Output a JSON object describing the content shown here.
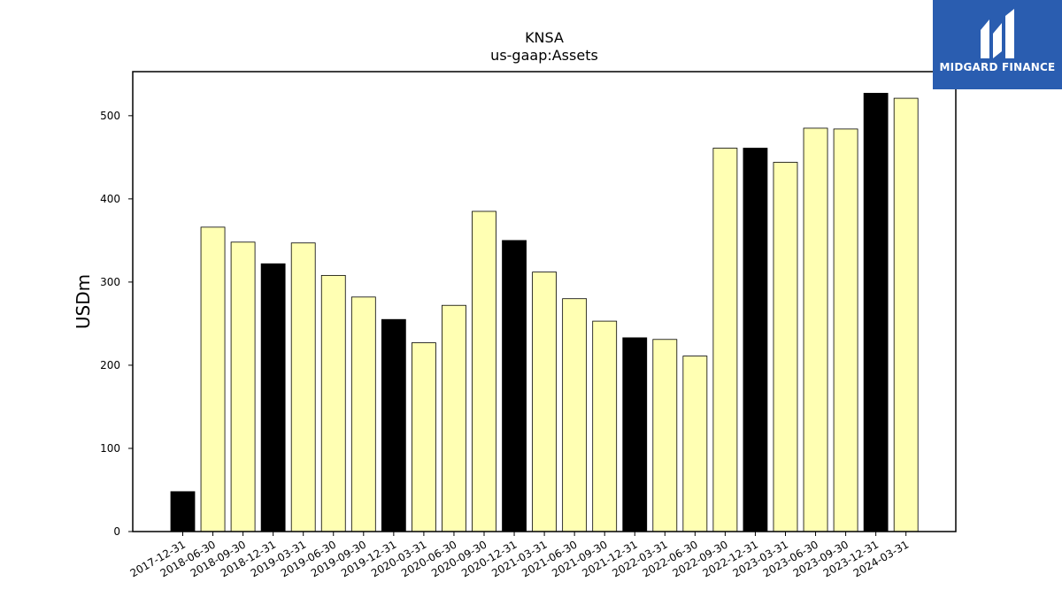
{
  "chart_data": {
    "type": "bar",
    "title": "KNSA",
    "subtitle": "us-gaap:Assets",
    "ylabel": "USDm",
    "xlabel": "",
    "ylim": [
      0,
      553
    ],
    "yticks": [
      0,
      100,
      200,
      300,
      400,
      500
    ],
    "categories": [
      "2017-12-31",
      "2018-06-30",
      "2018-09-30",
      "2018-12-31",
      "2019-03-31",
      "2019-06-30",
      "2019-09-30",
      "2019-12-31",
      "2020-03-31",
      "2020-06-30",
      "2020-09-30",
      "2020-12-31",
      "2021-03-31",
      "2021-06-30",
      "2021-09-30",
      "2021-12-31",
      "2022-03-31",
      "2022-06-30",
      "2022-09-30",
      "2022-12-31",
      "2023-03-31",
      "2023-06-30",
      "2023-09-30",
      "2023-12-31",
      "2024-03-31"
    ],
    "values": [
      48,
      366,
      348,
      322,
      347,
      308,
      282,
      255,
      227,
      272,
      385,
      350,
      312,
      280,
      253,
      233,
      231,
      211,
      461,
      461,
      444,
      485,
      484,
      527,
      521
    ],
    "year_end": [
      true,
      false,
      false,
      true,
      false,
      false,
      false,
      true,
      false,
      false,
      false,
      true,
      false,
      false,
      false,
      true,
      false,
      false,
      false,
      true,
      false,
      false,
      false,
      true,
      false
    ],
    "colors": {
      "year_end": "#000000",
      "quarter": "#ffffb3",
      "edge": "#000000"
    }
  },
  "logo": {
    "text": "MIDGARD FINANCE",
    "background": "#2a5db0"
  }
}
